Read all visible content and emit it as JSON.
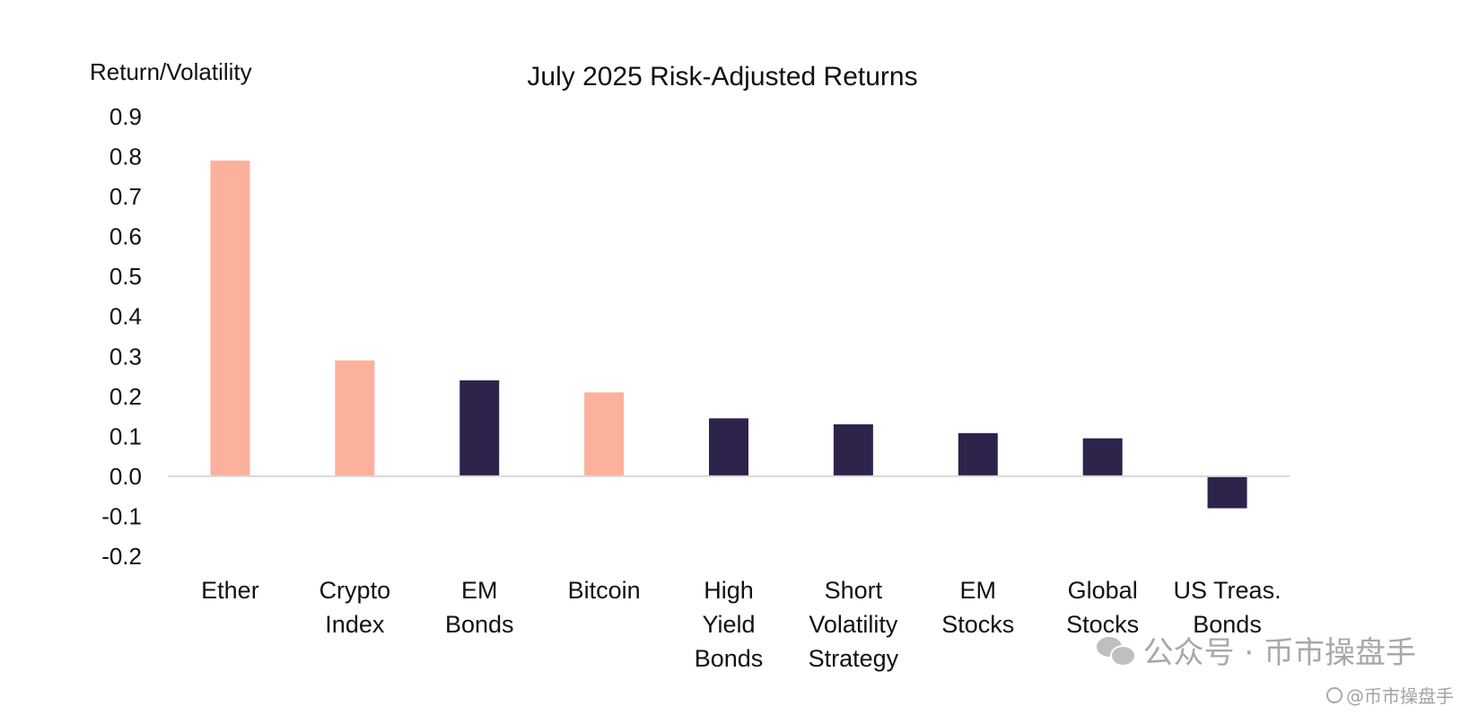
{
  "chart_data": {
    "type": "bar",
    "title": "July 2025 Risk-Adjusted Returns",
    "ylabel": "Return/Volatility",
    "xlabel": "",
    "ylim": [
      -0.2,
      0.9
    ],
    "yticks": [
      "0.9",
      "0.8",
      "0.7",
      "0.6",
      "0.5",
      "0.4",
      "0.3",
      "0.2",
      "0.1",
      "0.0",
      "-0.1",
      "-0.2"
    ],
    "ytick_values": [
      0.9,
      0.8,
      0.7,
      0.6,
      0.5,
      0.4,
      0.3,
      0.2,
      0.1,
      0.0,
      -0.1,
      -0.2
    ],
    "grid": false,
    "legend": "none",
    "categories": [
      [
        "Ether"
      ],
      [
        "Crypto",
        "Index"
      ],
      [
        "EM",
        "Bonds"
      ],
      [
        "Bitcoin"
      ],
      [
        "High",
        "Yield",
        "Bonds"
      ],
      [
        "Short",
        "Volatility",
        "Strategy"
      ],
      [
        "EM",
        "Stocks"
      ],
      [
        "Global",
        "Stocks"
      ],
      [
        "US Treas.",
        "Bonds"
      ]
    ],
    "values": [
      0.79,
      0.29,
      0.24,
      0.21,
      0.145,
      0.13,
      0.108,
      0.095,
      -0.08
    ],
    "bar_colors": [
      "#fcb19c",
      "#fcb19c",
      "#2e234b",
      "#fcb19c",
      "#2e234b",
      "#2e234b",
      "#2e234b",
      "#2e234b",
      "#2e234b"
    ],
    "axis_color": "#d9d9d9"
  },
  "watermark": {
    "main_text": "公众号 · 币市操盘手",
    "small_text": "@币市操盘手",
    "icon": "wechat-icon"
  }
}
